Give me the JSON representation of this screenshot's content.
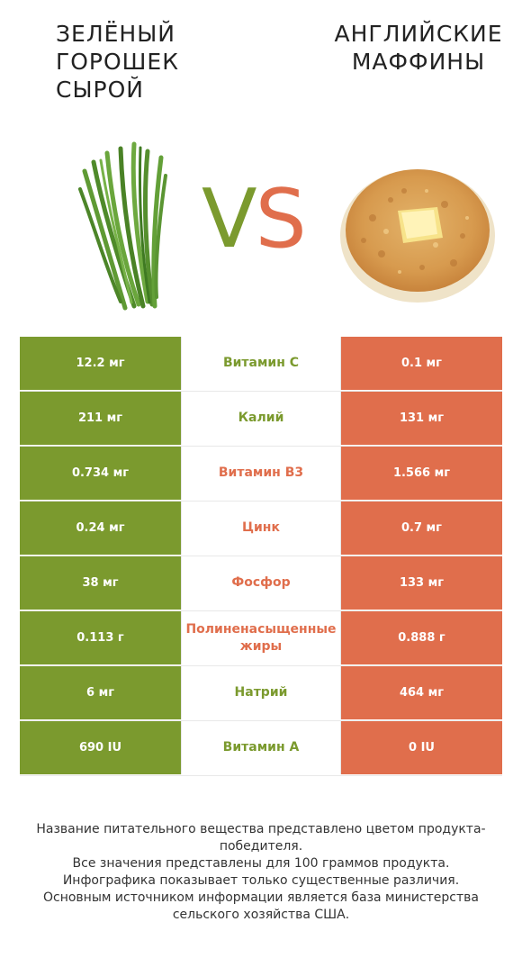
{
  "header": {
    "left_title": "ЗЕЛЁНЫЙ ГОРОШЕК СЫРОЙ",
    "right_title": "АНГЛИЙСКИЕ МАФФИНЫ",
    "vs_v": "V",
    "vs_s": "S"
  },
  "colors": {
    "left": "#7b9a2e",
    "right": "#e06e4c"
  },
  "rows": [
    {
      "left": "12.2 мг",
      "name": "Витамин C",
      "right": "0.1 мг",
      "winner": "left"
    },
    {
      "left": "211 мг",
      "name": "Калий",
      "right": "131 мг",
      "winner": "left"
    },
    {
      "left": "0.734 мг",
      "name": "Витамин B3",
      "right": "1.566 мг",
      "winner": "right"
    },
    {
      "left": "0.24 мг",
      "name": "Цинк",
      "right": "0.7 мг",
      "winner": "right"
    },
    {
      "left": "38 мг",
      "name": "Фосфор",
      "right": "133 мг",
      "winner": "right"
    },
    {
      "left": "0.113 г",
      "name": "Полиненасыщенные жиры",
      "right": "0.888 г",
      "winner": "right"
    },
    {
      "left": "6 мг",
      "name": "Натрий",
      "right": "464 мг",
      "winner": "left"
    },
    {
      "left": "690 IU",
      "name": "Витамин A",
      "right": "0 IU",
      "winner": "left"
    }
  ],
  "footer": {
    "line1": "Название питательного вещества представлено цветом продукта-победителя.",
    "line2": "Все значения представлены для 100 граммов продукта.",
    "line3": "Инфографика показывает только существенные различия.",
    "line4": "Основным источником информации является база министерства сельского хозяйства США."
  }
}
